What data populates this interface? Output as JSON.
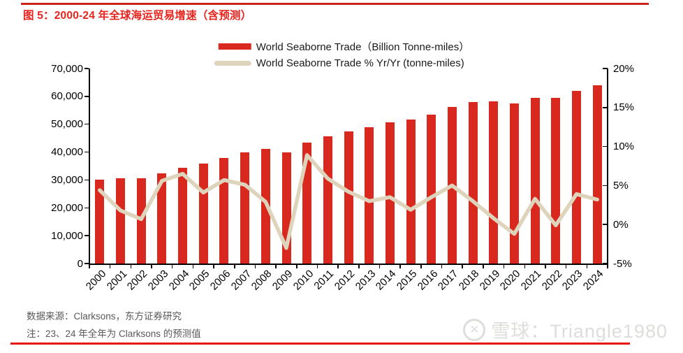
{
  "header": {
    "title": "图 5：2000-24 年全球海运贸易增速（含预测）"
  },
  "legend": {
    "items": [
      {
        "swatch": "bar",
        "label": "World Seaborne Trade（Billion Tonne-miles）"
      },
      {
        "swatch": "line",
        "label": "World Seaborne Trade % Yr/Yr (tonne-miles)"
      }
    ]
  },
  "chart_data": {
    "type": "bar",
    "title": "2000-24 年全球海运贸易增速（含预测）",
    "categories": [
      "2000",
      "2001",
      "2002",
      "2003",
      "2004",
      "2005",
      "2006",
      "2007",
      "2008",
      "2009",
      "2010",
      "2011",
      "2012",
      "2013",
      "2014",
      "2015",
      "2016",
      "2017",
      "2018",
      "2019",
      "2020",
      "2021",
      "2022",
      "2023",
      "2024"
    ],
    "series": [
      {
        "name": "World Seaborne Trade（Billion Tonne-miles）",
        "type": "bar",
        "axis": "left",
        "values": [
          30000,
          30500,
          30600,
          32400,
          34400,
          35900,
          37900,
          40000,
          41100,
          39900,
          43300,
          45700,
          47500,
          49000,
          50600,
          51600,
          53400,
          56200,
          57900,
          58300,
          57400,
          59500,
          59500,
          61900,
          63900
        ]
      },
      {
        "name": "World Seaborne Trade % Yr/Yr (tonne-miles)",
        "type": "line",
        "axis": "right",
        "values": [
          4.4,
          1.8,
          0.7,
          5.6,
          6.5,
          4.1,
          5.7,
          5.1,
          2.9,
          -3.0,
          8.9,
          5.9,
          4.2,
          3.0,
          3.5,
          1.9,
          3.5,
          5.0,
          3.0,
          0.8,
          -1.2,
          3.3,
          -0.1,
          3.9,
          3.2
        ]
      }
    ],
    "left_axis": {
      "min": 0,
      "max": 70000,
      "tick_step": 10000,
      "tick_labels": [
        "0",
        "10,000",
        "20,000",
        "30,000",
        "40,000",
        "50,000",
        "60,000",
        "70,000"
      ]
    },
    "right_axis": {
      "min": -5,
      "max": 20,
      "tick_step": 5,
      "tick_labels": [
        "-5%",
        "0%",
        "5%",
        "10%",
        "15%",
        "20%"
      ]
    },
    "grid": false,
    "legend_position": "top-center"
  },
  "colors": {
    "bar": "#d9281e",
    "line": "#ddd4bb",
    "accent": "#e8231d",
    "rule_top": "#c9241c",
    "rule_bottom": "#e8150e",
    "footer_text": "#5a5858",
    "watermark": "#dedddb",
    "axis_text": "#000000"
  },
  "footer": {
    "source": "数据来源：Clarksons，东方证券研究",
    "note": "注：23、24 年全年为 Clarksons 的预测值"
  },
  "watermark": {
    "logo": "xueqiu-logo",
    "text": "雪球：Triangle1980"
  }
}
